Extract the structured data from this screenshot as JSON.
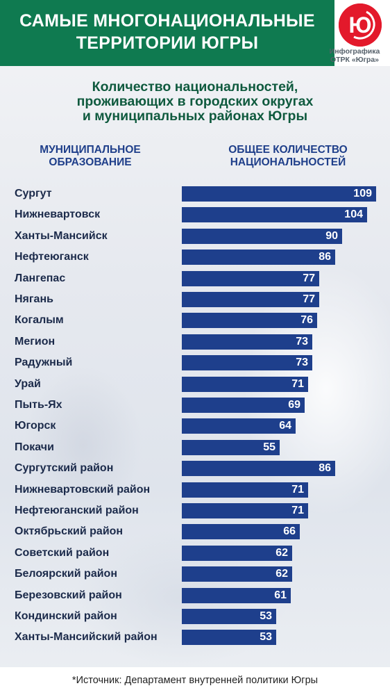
{
  "header": {
    "title_line1": "САМЫЕ МНОГОНАЦИОНАЛЬНЫЕ",
    "title_line2": "ТЕРРИТОРИИ ЮГРЫ",
    "accent_color": "#0f7a50"
  },
  "logo": {
    "mark": "Ю",
    "caption_line1": "Инфографика",
    "caption_line2": "ОТРК «Югра»",
    "color": "#e3192b"
  },
  "subtitle": {
    "line1": "Количество национальностей,",
    "line2": "проживающих в городских округах",
    "line3": "и муниципальных районах Югры"
  },
  "columns": {
    "left_line1": "МУНИЦИПАЛЬНОЕ",
    "left_line2": "ОБРАЗОВАНИЕ",
    "right_line1": "ОБЩЕЕ КОЛИЧЕСТВО",
    "right_line2": "НАЦИОНАЛЬНОСТЕЙ"
  },
  "chart_data": {
    "type": "bar",
    "orientation": "horizontal",
    "title": "Количество национальностей, проживающих в городских округах и муниципальных районах Югры",
    "xlabel": "ОБЩЕЕ КОЛИЧЕСТВО НАЦИОНАЛЬНОСТЕЙ",
    "ylabel": "МУНИЦИПАЛЬНОЕ ОБРАЗОВАНИЕ",
    "bar_color": "#1e3f8c",
    "categories": [
      "Сургут",
      "Нижневартовск",
      "Ханты-Мансийск",
      "Нефтеюганск",
      "Лангепас",
      "Нягань",
      "Когалым",
      "Мегион",
      "Радужный",
      "Урай",
      "Пыть-Ях",
      "Югорск",
      "Покачи",
      "Сургутский район",
      "Нижневартовский район",
      "Нефтеюганский район",
      "Октябрьский район",
      "Советский район",
      "Белоярский район",
      "Березовский район",
      "Кондинский район",
      "Ханты-Мансийский район"
    ],
    "values": [
      109,
      104,
      90,
      86,
      77,
      77,
      76,
      73,
      73,
      71,
      69,
      64,
      55,
      86,
      71,
      71,
      66,
      62,
      62,
      61,
      53,
      53
    ]
  },
  "footer": {
    "source": "*Источник:  Департамент внутренней политики Югры"
  }
}
